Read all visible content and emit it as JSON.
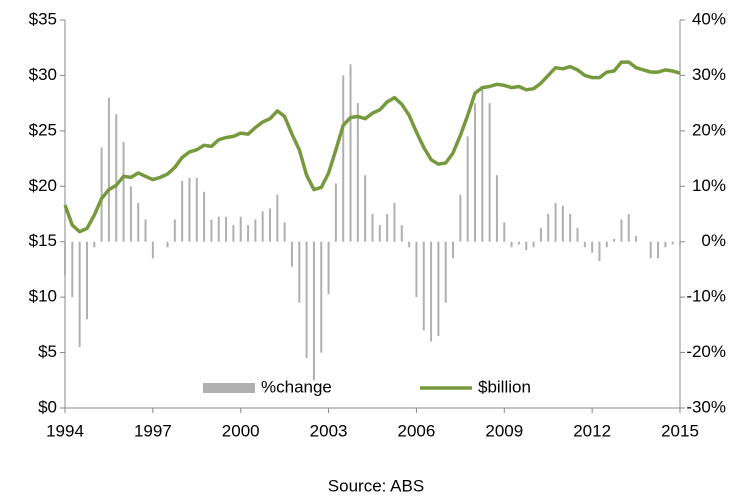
{
  "chart_data": {
    "type": "bar-line",
    "source": "Source: ABS",
    "x": [
      1994,
      1994.25,
      1994.5,
      1994.75,
      1995,
      1995.25,
      1995.5,
      1995.75,
      1996,
      1996.25,
      1996.5,
      1996.75,
      1997,
      1997.25,
      1997.5,
      1997.75,
      1998,
      1998.25,
      1998.5,
      1998.75,
      1999,
      1999.25,
      1999.5,
      1999.75,
      2000,
      2000.25,
      2000.5,
      2000.75,
      2001,
      2001.25,
      2001.5,
      2001.75,
      2002,
      2002.25,
      2002.5,
      2002.75,
      2003,
      2003.25,
      2003.5,
      2003.75,
      2004,
      2004.25,
      2004.5,
      2004.75,
      2005,
      2005.25,
      2005.5,
      2005.75,
      2006,
      2006.25,
      2006.5,
      2006.75,
      2007,
      2007.25,
      2007.5,
      2007.75,
      2008,
      2008.25,
      2008.5,
      2008.75,
      2009,
      2009.25,
      2009.5,
      2009.75,
      2010,
      2010.25,
      2010.5,
      2010.75,
      2011,
      2011.25,
      2011.5,
      2011.75,
      2012,
      2012.25,
      2012.5,
      2012.75,
      2013,
      2013.25,
      2013.5,
      2013.75,
      2014,
      2014.25,
      2014.5,
      2014.75,
      2015
    ],
    "series": [
      {
        "name": "%change",
        "type": "bar",
        "axis": "y2",
        "color": "#b0b0b0",
        "values": [
          -6,
          -10,
          -19,
          -14,
          -1,
          17,
          26,
          23,
          18,
          10,
          7,
          4,
          -3,
          0,
          -1,
          4,
          11,
          11.5,
          11.5,
          9,
          4,
          4.5,
          4.5,
          3,
          4.5,
          3,
          4,
          5.5,
          6,
          8.5,
          3.5,
          -4.5,
          -11,
          -21,
          -25,
          -20,
          -9.5,
          10.5,
          30,
          32,
          25,
          12,
          5,
          3,
          5,
          7,
          3,
          -1,
          -10,
          -16,
          -18,
          -17,
          -11,
          -3,
          8.5,
          19,
          25,
          28,
          25,
          12,
          3.5,
          -1,
          -0.5,
          -1.5,
          -1,
          2.5,
          5,
          7,
          6.5,
          5,
          2.5,
          -1,
          -2,
          -3.5,
          -1,
          0.5,
          4,
          5,
          1,
          0,
          -3,
          -3,
          -1,
          -0.5,
          -0.5
        ]
      },
      {
        "name": "$billion",
        "type": "line",
        "axis": "y",
        "color": "#77993d",
        "values": [
          18.3,
          16.5,
          15.9,
          16.2,
          17.4,
          18.9,
          19.7,
          20.1,
          20.9,
          20.8,
          21.2,
          20.9,
          20.6,
          20.8,
          21.1,
          21.7,
          22.6,
          23.1,
          23.3,
          23.7,
          23.6,
          24.2,
          24.4,
          24.5,
          24.8,
          24.7,
          25.3,
          25.8,
          26.1,
          26.8,
          26.3,
          24.7,
          23.3,
          21,
          19.7,
          19.9,
          21.2,
          23.3,
          25.5,
          26.2,
          26.3,
          26.1,
          26.6,
          26.9,
          27.6,
          28,
          27.4,
          26.4,
          24.9,
          23.5,
          22.4,
          22,
          22.1,
          23,
          24.6,
          26.4,
          28.4,
          28.9,
          29,
          29.2,
          29.1,
          28.9,
          29,
          28.7,
          28.8,
          29.3,
          30,
          30.7,
          30.6,
          30.8,
          30.5,
          30,
          29.8,
          29.8,
          30.3,
          30.4,
          31.2,
          31.2,
          30.7,
          30.5,
          30.3,
          30.3,
          30.5,
          30.4,
          30.2
        ]
      }
    ],
    "xlim": [
      1994,
      2015
    ],
    "xticks": [
      1994,
      1997,
      2000,
      2003,
      2006,
      2009,
      2012,
      2015
    ],
    "ylim": [
      0,
      35
    ],
    "yticks": [
      {
        "value": 0,
        "label": "$0"
      },
      {
        "value": 5,
        "label": "$5"
      },
      {
        "value": 10,
        "label": "$10"
      },
      {
        "value": 15,
        "label": "$15"
      },
      {
        "value": 20,
        "label": "$20"
      },
      {
        "value": 25,
        "label": "$25"
      },
      {
        "value": 30,
        "label": "$30"
      },
      {
        "value": 35,
        "label": "$35"
      }
    ],
    "y2lim": [
      -30,
      40
    ],
    "y2ticks": [
      {
        "value": -30,
        "label": "-30%"
      },
      {
        "value": -20,
        "label": "-20%"
      },
      {
        "value": -10,
        "label": "-10%"
      },
      {
        "value": 0,
        "label": "0%"
      },
      {
        "value": 10,
        "label": "10%"
      },
      {
        "value": 20,
        "label": "20%"
      },
      {
        "value": 30,
        "label": "30%"
      },
      {
        "value": 40,
        "label": "40%"
      }
    ],
    "legend": "bottom"
  }
}
